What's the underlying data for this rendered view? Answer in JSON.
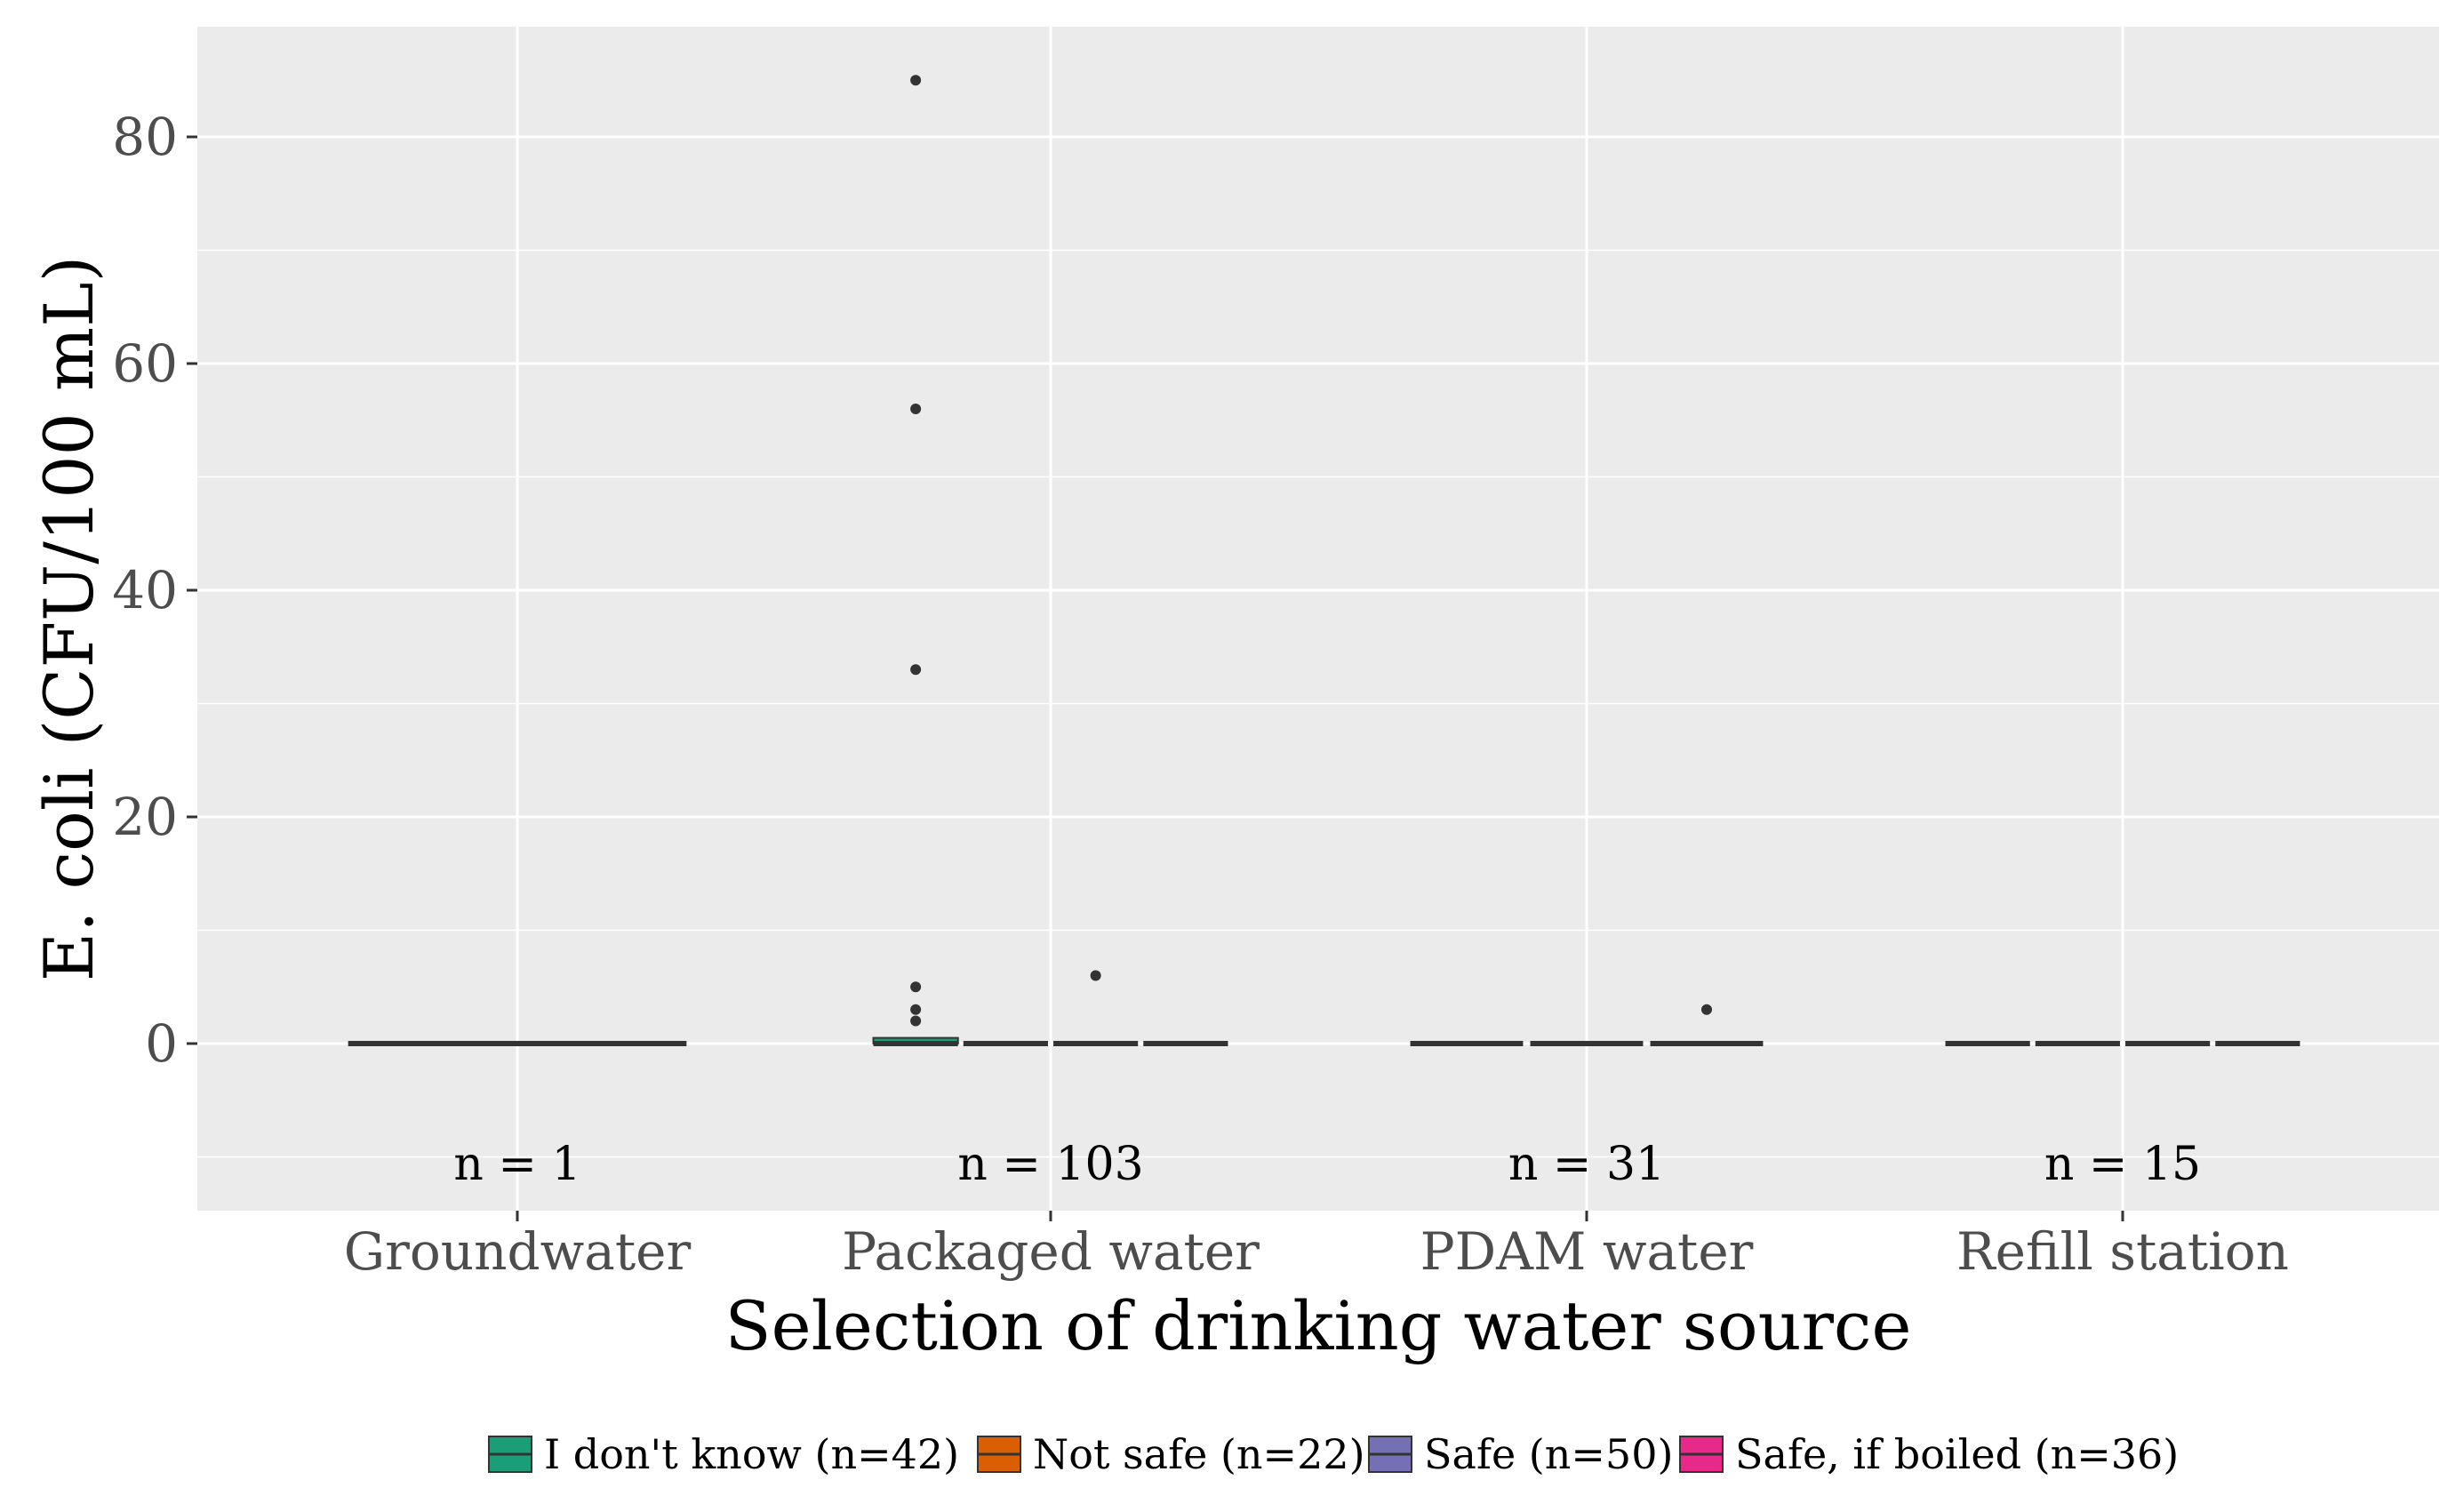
{
  "chart_data": {
    "type": "boxplot",
    "title": "",
    "xlabel": "Selection of drinking water source",
    "ylabel": "E. coli (CFU/100 mL)",
    "ylim": [
      -15,
      90
    ],
    "yticks": [
      0,
      20,
      40,
      60,
      80
    ],
    "categories": [
      "Groundwater",
      "Packaged water",
      "PDAM water",
      "Refill station"
    ],
    "n_labels": [
      "n = 1",
      "n = 103",
      "n = 31",
      "n = 15"
    ],
    "legend": {
      "position": "bottom",
      "entries": [
        {
          "name": "I don't know (n=42)",
          "color": "#1B9E77"
        },
        {
          "name": "Not safe (n=22)",
          "color": "#D95F02"
        },
        {
          "name": "Safe (n=50)",
          "color": "#7570B3"
        },
        {
          "name": "Safe, if boiled (n=36)",
          "color": "#E7298A"
        }
      ]
    },
    "boxes": [
      {
        "category": "Groundwater",
        "group": "I don't know (n=42)",
        "q1": 0,
        "median": 0,
        "q3": 0,
        "outliers": []
      },
      {
        "category": "Packaged water",
        "group": "I don't know (n=42)",
        "q1": 0,
        "median": 0,
        "q3": 0.5,
        "outliers": [
          2,
          3,
          5,
          33,
          56,
          85
        ]
      },
      {
        "category": "Packaged water",
        "group": "Not safe (n=22)",
        "q1": 0,
        "median": 0,
        "q3": 0,
        "outliers": []
      },
      {
        "category": "Packaged water",
        "group": "Safe (n=50)",
        "q1": 0,
        "median": 0,
        "q3": 0,
        "outliers": [
          6
        ]
      },
      {
        "category": "Packaged water",
        "group": "Safe, if boiled (n=36)",
        "q1": 0,
        "median": 0,
        "q3": 0,
        "outliers": []
      },
      {
        "category": "PDAM water",
        "group": "Not safe (n=22)",
        "q1": 0,
        "median": 0,
        "q3": 0,
        "outliers": []
      },
      {
        "category": "PDAM water",
        "group": "Safe (n=50)",
        "q1": 0,
        "median": 0,
        "q3": 0,
        "outliers": []
      },
      {
        "category": "PDAM water",
        "group": "Safe, if boiled (n=36)",
        "q1": 0,
        "median": 0,
        "q3": 0,
        "outliers": [
          3
        ]
      },
      {
        "category": "Refill station",
        "group": "I don't know (n=42)",
        "q1": 0,
        "median": 0,
        "q3": 0,
        "outliers": []
      },
      {
        "category": "Refill station",
        "group": "Not safe (n=22)",
        "q1": 0,
        "median": 0,
        "q3": 0,
        "outliers": []
      },
      {
        "category": "Refill station",
        "group": "Safe (n=50)",
        "q1": 0,
        "median": 0,
        "q3": 0,
        "outliers": []
      },
      {
        "category": "Refill station",
        "group": "Safe, if boiled (n=36)",
        "q1": 0,
        "median": 0,
        "q3": 0,
        "outliers": []
      }
    ],
    "grid": true
  }
}
